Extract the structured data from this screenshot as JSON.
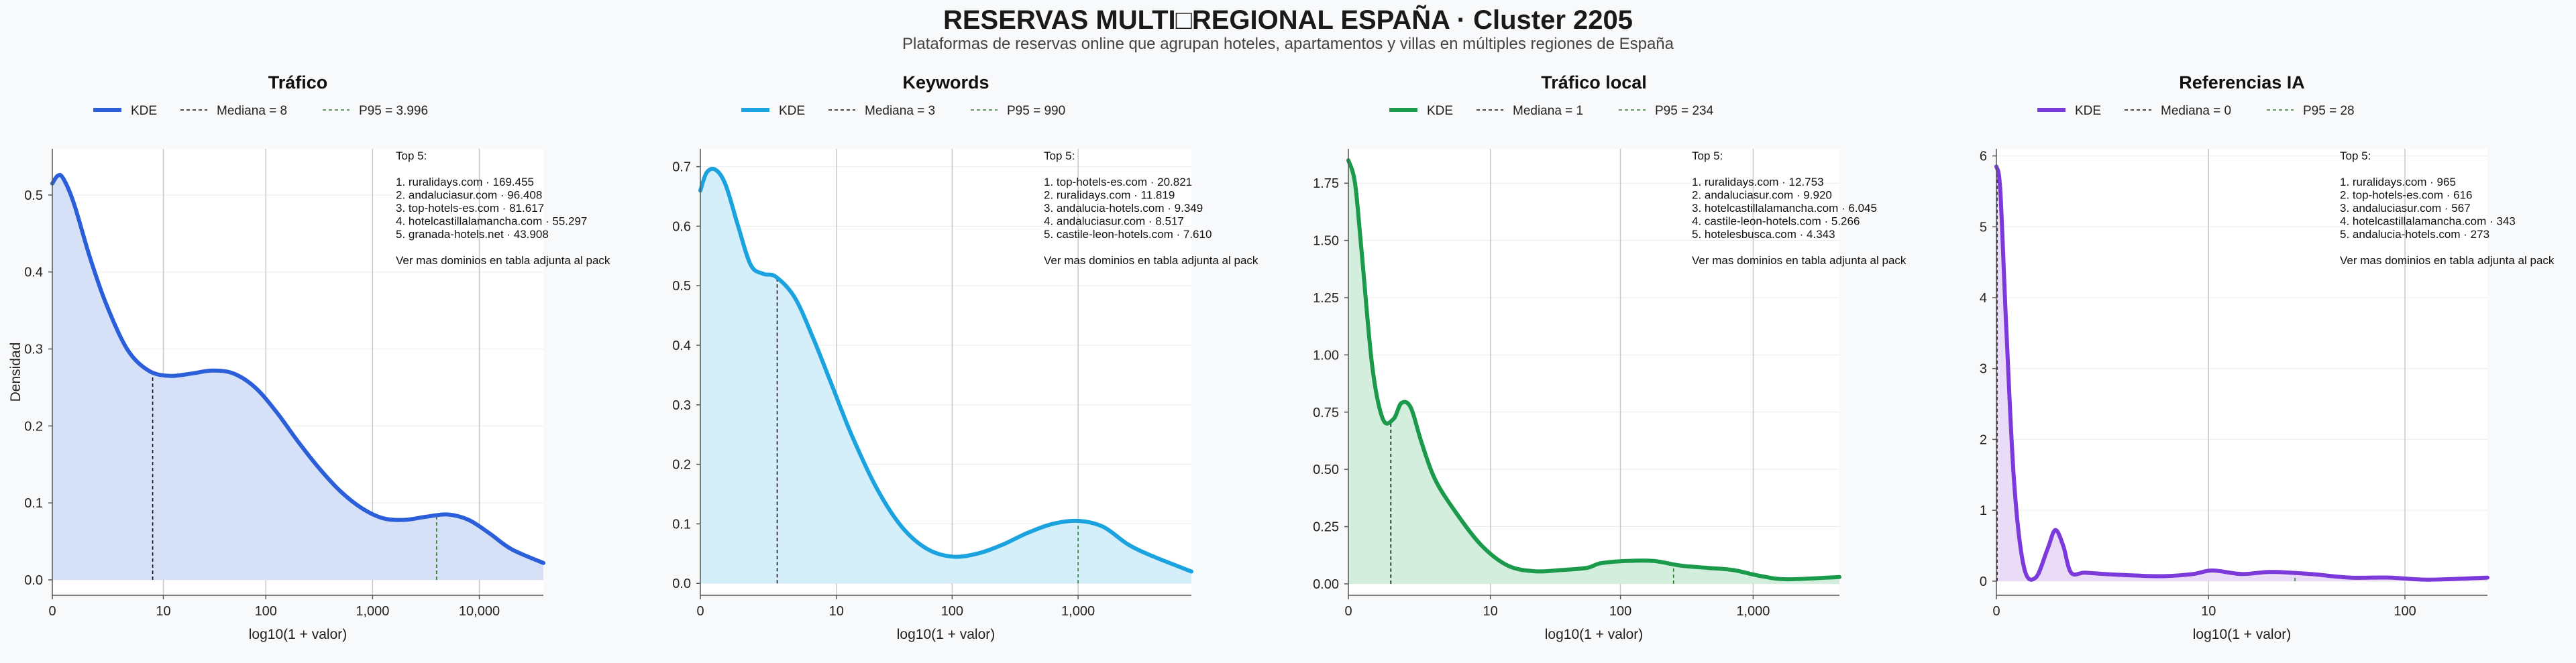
{
  "figure": {
    "title": "RESERVAS MULTI□REGIONAL ESPAÑA · Cluster 2205",
    "subtitle": "Plataformas de reservas online que agrupan hoteles, apartamentos y villas en múltiples regiones de España",
    "shared_ylabel": "Densidad"
  },
  "chart_data": [
    {
      "type": "area",
      "title": "Tráfico",
      "color": "#2b5fd9",
      "fill": "#d6e0f7",
      "xlabel": "log10(1 + valor)",
      "xlim": [
        0,
        4.6
      ],
      "ylim": [
        -0.02,
        0.56
      ],
      "xticks": [
        {
          "v": 0,
          "label": "0"
        },
        {
          "v": 1.04,
          "label": "10"
        },
        {
          "v": 2.0,
          "label": "100"
        },
        {
          "v": 3.0,
          "label": "1,000"
        },
        {
          "v": 4.0,
          "label": "10,000"
        }
      ],
      "yticks": [
        {
          "v": 0.0,
          "label": "0.0"
        },
        {
          "v": 0.1,
          "label": "0.1"
        },
        {
          "v": 0.2,
          "label": "0.2"
        },
        {
          "v": 0.3,
          "label": "0.3"
        },
        {
          "v": 0.4,
          "label": "0.4"
        },
        {
          "v": 0.5,
          "label": "0.5"
        }
      ],
      "kde": {
        "x": [
          0,
          0.05,
          0.1,
          0.2,
          0.35,
          0.5,
          0.7,
          0.9,
          1.1,
          1.3,
          1.5,
          1.7,
          1.9,
          2.1,
          2.3,
          2.5,
          2.7,
          2.9,
          3.1,
          3.3,
          3.5,
          3.7,
          3.9,
          4.1,
          4.3,
          4.6
        ],
        "y": [
          0.515,
          0.525,
          0.522,
          0.49,
          0.42,
          0.36,
          0.3,
          0.272,
          0.265,
          0.268,
          0.272,
          0.268,
          0.25,
          0.218,
          0.18,
          0.145,
          0.115,
          0.093,
          0.08,
          0.078,
          0.082,
          0.085,
          0.078,
          0.06,
          0.04,
          0.022
        ]
      },
      "median": {
        "x": 0.94,
        "label": "Mediana = 8"
      },
      "p95": {
        "x": 3.6,
        "label": "P95 = 3.996"
      },
      "legend": {
        "kde": "KDE"
      },
      "annotation": [
        "Top 5:",
        "",
        "1. ruralidays.com · 169.455",
        "2. andaluciasur.com · 96.408",
        "3. top-hotels-es.com · 81.617",
        "4. hotelcastillalamancha.com · 55.297",
        "5. granada-hotels.net · 43.908",
        "",
        "Ver mas dominios en tabla adjunta al pack"
      ]
    },
    {
      "type": "area",
      "title": "Keywords",
      "color": "#1aa3de",
      "fill": "#d4eefa",
      "xlabel": "log10(1 + valor)",
      "xlim": [
        0,
        3.9
      ],
      "ylim": [
        -0.02,
        0.73
      ],
      "xticks": [
        {
          "v": 0,
          "label": "0"
        },
        {
          "v": 1.08,
          "label": "10"
        },
        {
          "v": 2.0,
          "label": "100"
        },
        {
          "v": 3.0,
          "label": "1,000"
        }
      ],
      "yticks": [
        {
          "v": 0.0,
          "label": "0.0"
        },
        {
          "v": 0.1,
          "label": "0.1"
        },
        {
          "v": 0.2,
          "label": "0.2"
        },
        {
          "v": 0.3,
          "label": "0.3"
        },
        {
          "v": 0.4,
          "label": "0.4"
        },
        {
          "v": 0.5,
          "label": "0.5"
        },
        {
          "v": 0.6,
          "label": "0.6"
        },
        {
          "v": 0.7,
          "label": "0.7"
        }
      ],
      "kde": {
        "x": [
          0,
          0.05,
          0.12,
          0.2,
          0.3,
          0.4,
          0.5,
          0.6,
          0.75,
          0.9,
          1.05,
          1.2,
          1.4,
          1.6,
          1.8,
          2.0,
          2.2,
          2.4,
          2.6,
          2.8,
          3.0,
          3.2,
          3.4,
          3.6,
          3.9
        ],
        "y": [
          0.66,
          0.69,
          0.695,
          0.67,
          0.6,
          0.535,
          0.52,
          0.515,
          0.48,
          0.41,
          0.33,
          0.25,
          0.16,
          0.095,
          0.058,
          0.045,
          0.05,
          0.065,
          0.085,
          0.1,
          0.105,
          0.095,
          0.065,
          0.045,
          0.02
        ]
      },
      "median": {
        "x": 0.61,
        "label": "Mediana = 3"
      },
      "p95": {
        "x": 3.0,
        "label": "P95 = 990"
      },
      "legend": {
        "kde": "KDE"
      },
      "annotation": [
        "Top 5:",
        "",
        "1. top-hotels-es.com · 20.821",
        "2. ruralidays.com · 11.819",
        "3. andalucia-hotels.com · 9.349",
        "4. andaluciasur.com · 8.517",
        "5. castile-leon-hotels.com · 7.610",
        "",
        "Ver mas dominios en tabla adjunta al pack"
      ]
    },
    {
      "type": "area",
      "title": "Tráfico local",
      "color": "#1a9a4a",
      "fill": "#d3eedc",
      "xlabel": "log10(1 + valor)",
      "xlim": [
        0,
        3.7
      ],
      "ylim": [
        -0.05,
        1.9
      ],
      "xticks": [
        {
          "v": 0,
          "label": "0"
        },
        {
          "v": 1.07,
          "label": "10"
        },
        {
          "v": 2.05,
          "label": "100"
        },
        {
          "v": 3.05,
          "label": "1,000"
        }
      ],
      "yticks": [
        {
          "v": 0.0,
          "label": "0.00"
        },
        {
          "v": 0.25,
          "label": "0.25"
        },
        {
          "v": 0.5,
          "label": "0.50"
        },
        {
          "v": 0.75,
          "label": "0.75"
        },
        {
          "v": 1.0,
          "label": "1.00"
        },
        {
          "v": 1.25,
          "label": "1.25"
        },
        {
          "v": 1.5,
          "label": "1.50"
        },
        {
          "v": 1.75,
          "label": "1.75"
        }
      ],
      "kde": {
        "x": [
          0,
          0.05,
          0.1,
          0.18,
          0.26,
          0.34,
          0.4,
          0.47,
          0.55,
          0.65,
          0.8,
          1.0,
          1.2,
          1.4,
          1.6,
          1.8,
          1.9,
          2.1,
          2.3,
          2.5,
          2.7,
          2.9,
          3.1,
          3.3,
          3.7
        ],
        "y": [
          1.85,
          1.75,
          1.45,
          0.95,
          0.72,
          0.72,
          0.79,
          0.77,
          0.62,
          0.46,
          0.32,
          0.17,
          0.08,
          0.055,
          0.06,
          0.07,
          0.09,
          0.1,
          0.1,
          0.08,
          0.07,
          0.06,
          0.035,
          0.02,
          0.03
        ]
      },
      "median": {
        "x": 0.32,
        "label": "Mediana = 1"
      },
      "p95": {
        "x": 2.45,
        "label": "P95 = 234"
      },
      "legend": {
        "kde": "KDE"
      },
      "annotation": [
        "Top 5:",
        "",
        "1. ruralidays.com · 12.753",
        "2. andaluciasur.com · 9.920",
        "3. hotelcastillalamancha.com · 6.045",
        "4. castile-leon-hotels.com · 5.266",
        "5. hotelesbusca.com · 4.343",
        "",
        "Ver mas dominios en tabla adjunta al pack"
      ]
    },
    {
      "type": "area",
      "title": "Referencias IA",
      "color": "#7d3adb",
      "fill": "#eadcf7",
      "xlabel": "log10(1 + valor)",
      "xlim": [
        0,
        2.5
      ],
      "ylim": [
        -0.2,
        6.1
      ],
      "xticks": [
        {
          "v": 0,
          "label": "0"
        },
        {
          "v": 1.08,
          "label": "10"
        },
        {
          "v": 2.08,
          "label": "100"
        }
      ],
      "yticks": [
        {
          "v": 0,
          "label": "0"
        },
        {
          "v": 1,
          "label": "1"
        },
        {
          "v": 2,
          "label": "2"
        },
        {
          "v": 3,
          "label": "3"
        },
        {
          "v": 4,
          "label": "4"
        },
        {
          "v": 5,
          "label": "5"
        },
        {
          "v": 6,
          "label": "6"
        }
      ],
      "kde": {
        "x": [
          0,
          0.02,
          0.05,
          0.09,
          0.14,
          0.2,
          0.26,
          0.3,
          0.34,
          0.38,
          0.45,
          0.55,
          0.7,
          0.85,
          1.0,
          1.1,
          1.25,
          1.4,
          1.6,
          1.8,
          2.0,
          2.2,
          2.5
        ],
        "y": [
          5.85,
          5.5,
          3.6,
          1.4,
          0.2,
          0.05,
          0.45,
          0.72,
          0.5,
          0.12,
          0.12,
          0.1,
          0.08,
          0.07,
          0.1,
          0.15,
          0.1,
          0.13,
          0.1,
          0.05,
          0.05,
          0.02,
          0.05
        ]
      },
      "median": {
        "x": 0.0,
        "label": "Mediana = 0"
      },
      "p95": {
        "x": 1.52,
        "label": "P95 = 28"
      },
      "legend": {
        "kde": "KDE"
      },
      "annotation": [
        "Top 5:",
        "",
        "1. ruralidays.com · 965",
        "2. top-hotels-es.com · 616",
        "3. andaluciasur.com · 567",
        "4. hotelcastillalamancha.com · 343",
        "5. andalucia-hotels.com · 273",
        "",
        "Ver mas dominios en tabla adjunta al pack"
      ]
    }
  ]
}
